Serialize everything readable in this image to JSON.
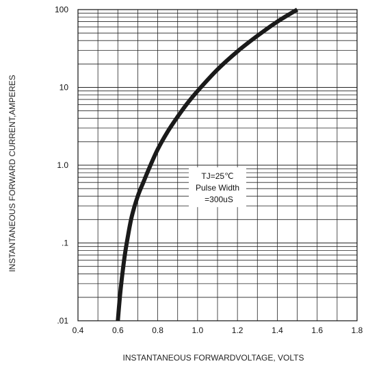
{
  "chart_data": {
    "type": "line",
    "xlabel": "INSTANTANEOUS FORWARDVOLTAGE,  VOLTS",
    "ylabel": "INSTANTANEOUS FORWARD CURRENT,AMPERES",
    "xlim": [
      0.4,
      1.8
    ],
    "ylim": [
      0.01,
      100
    ],
    "yscale": "log",
    "grid": true,
    "x_ticks": [
      {
        "value": 0.4,
        "label": "0.4"
      },
      {
        "value": 0.6,
        "label": "0.6"
      },
      {
        "value": 0.8,
        "label": "0.8"
      },
      {
        "value": 1.0,
        "label": "1.0"
      },
      {
        "value": 1.2,
        "label": "1.2"
      },
      {
        "value": 1.4,
        "label": "1.4"
      },
      {
        "value": 1.6,
        "label": "1.6"
      },
      {
        "value": 1.8,
        "label": "1.8"
      }
    ],
    "y_ticks": [
      {
        "value": 100,
        "label": "100"
      },
      {
        "value": 10,
        "label": "10"
      },
      {
        "value": 1,
        "label": "1.0"
      },
      {
        "value": 0.1,
        "label": ".1"
      },
      {
        "value": 0.01,
        "label": ".01"
      }
    ],
    "series": [
      {
        "color": "#1a1a1a",
        "x": [
          0.6,
          0.61,
          0.62,
          0.635,
          0.65,
          0.67,
          0.7,
          0.73,
          0.76,
          0.8,
          0.85,
          0.9,
          0.95,
          1.0,
          1.1,
          1.2,
          1.3,
          1.4,
          1.5
        ],
        "y": [
          0.01,
          0.02,
          0.035,
          0.07,
          0.12,
          0.22,
          0.4,
          0.62,
          0.95,
          1.6,
          2.7,
          4.2,
          6.3,
          9.0,
          17,
          29,
          46,
          70,
          100
        ]
      }
    ],
    "annotation": {
      "lines": [
        "TJ=25℃",
        "Pulse Width",
        "=300uS"
      ],
      "x": 1.1,
      "y": 0.5
    }
  }
}
